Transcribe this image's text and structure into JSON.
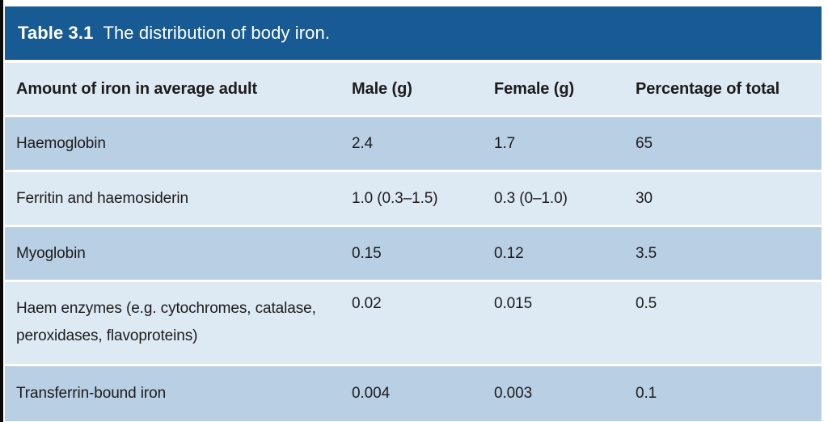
{
  "table": {
    "title_label": "Table 3.1",
    "title_text": "The distribution of body iron.",
    "columns": {
      "amount": "Amount of iron in average adult",
      "male": "Male (g)",
      "female": "Female (g)",
      "pct": "Percentage of total"
    },
    "rows": [
      {
        "name": "Haemoglobin",
        "male": "2.4",
        "female": "1.7",
        "pct": "65"
      },
      {
        "name": "Ferritin and haemosiderin",
        "male": "1.0 (0.3–1.5)",
        "female": "0.3 (0–1.0)",
        "pct": "30"
      },
      {
        "name": "Myoglobin",
        "male": "0.15",
        "female": "0.12",
        "pct": "3.5"
      },
      {
        "name": "Haem enzymes (e.g. cytochromes, catalase, peroxidases, flavoproteins)",
        "male": "0.02",
        "female": "0.015",
        "pct": "0.5"
      },
      {
        "name": "Transferrin-bound iron",
        "male": "0.004",
        "female": "0.003",
        "pct": "0.1"
      }
    ],
    "colors": {
      "title_bar": "#175a94",
      "row_dark": "#b9cfe3",
      "row_light": "#dde9f3",
      "text": "#1c1c1c",
      "title_text": "#ffffff",
      "left_rule": "#0a0a0a"
    }
  }
}
